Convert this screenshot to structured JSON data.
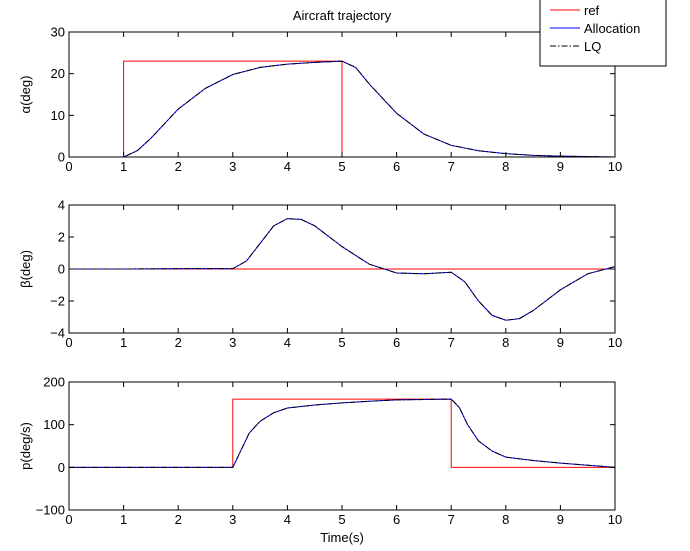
{
  "figure": {
    "title": "Aircraft trajectory",
    "xlabel": "Time(s)"
  },
  "legend": {
    "placement": "top-right",
    "entries": [
      {
        "label": "ref",
        "color": "#ff0000",
        "dash": "solid"
      },
      {
        "label": "Allocation",
        "color": "#0000ff",
        "dash": "solid"
      },
      {
        "label": "LQ",
        "color": "#000000",
        "dash": "dashdot"
      }
    ]
  },
  "colors": {
    "ref": "#ff0000",
    "allocation": "#0000ff",
    "lq": "#000000",
    "axes": "#000000",
    "background": "#ffffff"
  },
  "chart_data": [
    {
      "type": "line",
      "ylabel": "α(deg)",
      "xlim": [
        0,
        10
      ],
      "ylim": [
        0,
        30
      ],
      "xticks": [
        0,
        1,
        2,
        3,
        4,
        5,
        6,
        7,
        8,
        9,
        10
      ],
      "yticks": [
        0,
        10,
        20,
        30
      ],
      "grid": false,
      "series": [
        {
          "name": "ref",
          "x": [
            0,
            1,
            1,
            5,
            5,
            10
          ],
          "y": [
            0,
            0,
            23,
            23,
            0,
            0
          ]
        },
        {
          "name": "Allocation",
          "x": [
            0,
            1,
            1.25,
            1.5,
            1.75,
            2,
            2.5,
            3,
            3.5,
            4,
            4.5,
            5,
            5.25,
            5.5,
            6,
            6.5,
            7,
            7.5,
            8,
            8.5,
            9,
            10
          ],
          "y": [
            0,
            0,
            1.5,
            4.5,
            8,
            11.5,
            16.5,
            19.8,
            21.5,
            22.3,
            22.7,
            23,
            21.5,
            17.5,
            10.5,
            5.5,
            2.8,
            1.5,
            0.8,
            0.4,
            0.2,
            0
          ]
        },
        {
          "name": "LQ",
          "x": [
            0,
            1,
            1.25,
            1.5,
            1.75,
            2,
            2.5,
            3,
            3.5,
            4,
            4.5,
            5,
            5.25,
            5.5,
            6,
            6.5,
            7,
            7.5,
            8,
            8.5,
            9,
            10
          ],
          "y": [
            0,
            0,
            1.5,
            4.5,
            8,
            11.5,
            16.5,
            19.8,
            21.5,
            22.3,
            22.7,
            23,
            21.5,
            17.5,
            10.5,
            5.5,
            2.8,
            1.5,
            0.8,
            0.4,
            0.2,
            0
          ]
        }
      ]
    },
    {
      "type": "line",
      "ylabel": "β(deg)",
      "xlim": [
        0,
        10
      ],
      "ylim": [
        -4,
        4
      ],
      "xticks": [
        0,
        1,
        2,
        3,
        4,
        5,
        6,
        7,
        8,
        9,
        10
      ],
      "yticks": [
        -4,
        -2,
        0,
        2,
        4
      ],
      "grid": false,
      "series": [
        {
          "name": "ref",
          "x": [
            0,
            10
          ],
          "y": [
            0,
            0
          ]
        },
        {
          "name": "Allocation",
          "x": [
            0,
            1,
            2,
            3,
            3.25,
            3.5,
            3.75,
            4,
            4.25,
            4.5,
            5,
            5.5,
            6,
            6.5,
            7,
            7.25,
            7.5,
            7.75,
            8,
            8.25,
            8.5,
            9,
            9.5,
            10
          ],
          "y": [
            0,
            0,
            0.02,
            0.02,
            0.5,
            1.6,
            2.7,
            3.15,
            3.1,
            2.7,
            1.4,
            0.3,
            -0.25,
            -0.3,
            -0.2,
            -0.8,
            -2.0,
            -2.9,
            -3.2,
            -3.1,
            -2.6,
            -1.3,
            -0.3,
            0.15
          ]
        },
        {
          "name": "LQ",
          "x": [
            0,
            1,
            2,
            3,
            3.25,
            3.5,
            3.75,
            4,
            4.25,
            4.5,
            5,
            5.5,
            6,
            6.5,
            7,
            7.25,
            7.5,
            7.75,
            8,
            8.25,
            8.5,
            9,
            9.5,
            10
          ],
          "y": [
            0,
            0,
            0.02,
            0.02,
            0.5,
            1.6,
            2.7,
            3.15,
            3.1,
            2.7,
            1.4,
            0.3,
            -0.25,
            -0.3,
            -0.2,
            -0.8,
            -2.0,
            -2.9,
            -3.2,
            -3.1,
            -2.6,
            -1.3,
            -0.3,
            0.15
          ]
        }
      ]
    },
    {
      "type": "line",
      "ylabel": "p(deg/s)",
      "xlabel": "Time(s)",
      "xlim": [
        0,
        10
      ],
      "ylim": [
        -100,
        200
      ],
      "xticks": [
        0,
        1,
        2,
        3,
        4,
        5,
        6,
        7,
        8,
        9,
        10
      ],
      "yticks": [
        -100,
        0,
        100,
        200
      ],
      "grid": false,
      "series": [
        {
          "name": "ref",
          "x": [
            0,
            3,
            3,
            7,
            7,
            10
          ],
          "y": [
            0,
            0,
            160,
            160,
            0,
            0
          ]
        },
        {
          "name": "Allocation",
          "x": [
            0,
            3,
            3.15,
            3.3,
            3.5,
            3.75,
            4,
            4.5,
            5,
            5.5,
            6,
            6.5,
            7,
            7.15,
            7.3,
            7.5,
            7.75,
            8,
            8.5,
            9,
            9.5,
            10
          ],
          "y": [
            0,
            0,
            40,
            80,
            108,
            128,
            139,
            146,
            151,
            155,
            158,
            159,
            160,
            140,
            100,
            62,
            38,
            24,
            16,
            10,
            5,
            0
          ]
        },
        {
          "name": "LQ",
          "x": [
            0,
            3,
            3.15,
            3.3,
            3.5,
            3.75,
            4,
            4.5,
            5,
            5.5,
            6,
            6.5,
            7,
            7.15,
            7.3,
            7.5,
            7.75,
            8,
            8.5,
            9,
            9.5,
            10
          ],
          "y": [
            0,
            0,
            40,
            80,
            108,
            128,
            139,
            146,
            151,
            155,
            158,
            159,
            160,
            140,
            100,
            62,
            38,
            24,
            16,
            10,
            5,
            0
          ]
        }
      ]
    }
  ]
}
